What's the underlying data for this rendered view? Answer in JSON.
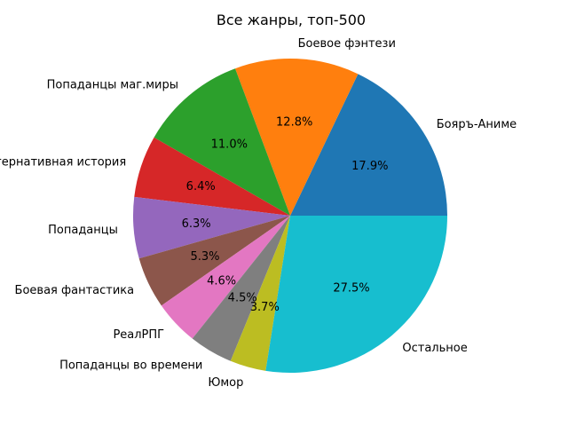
{
  "figure": {
    "background": "#ffffff"
  },
  "chart_data": {
    "type": "pie",
    "title": "Все жанры, топ-500",
    "direction": "counterclockwise",
    "start_angle_deg": 0,
    "legend": "none",
    "unit": "%",
    "text_color": "#000000",
    "label_radius_ratio": 1.1,
    "pct_radius_ratio": 0.6,
    "slices": [
      {
        "label": "Бояръ-Аниме",
        "value": 17.9,
        "pct_text": "17.9%",
        "color": "#1f77b4"
      },
      {
        "label": "Боевое фэнтези",
        "value": 12.8,
        "pct_text": "12.8%",
        "color": "#ff7f0e"
      },
      {
        "label": "Попаданцы маг.миры",
        "value": 11.0,
        "pct_text": "11.0%",
        "color": "#2ca02c"
      },
      {
        "label": "Альтернативная история",
        "value": 6.4,
        "pct_text": "6.4%",
        "color": "#d62728"
      },
      {
        "label": "Попаданцы",
        "value": 6.3,
        "pct_text": "6.3%",
        "color": "#9467bd"
      },
      {
        "label": "Боевая фантастика",
        "value": 5.3,
        "pct_text": "5.3%",
        "color": "#8c564b"
      },
      {
        "label": "РеалРПГ",
        "value": 4.6,
        "pct_text": "4.6%",
        "color": "#e377c2"
      },
      {
        "label": "Попаданцы во времени",
        "value": 4.5,
        "pct_text": "4.5%",
        "color": "#7f7f7f"
      },
      {
        "label": "Юмор",
        "value": 3.7,
        "pct_text": "3.7%",
        "color": "#bcbd22"
      },
      {
        "label": "Остальное",
        "value": 27.5,
        "pct_text": "27.5%",
        "color": "#17becf"
      }
    ]
  }
}
